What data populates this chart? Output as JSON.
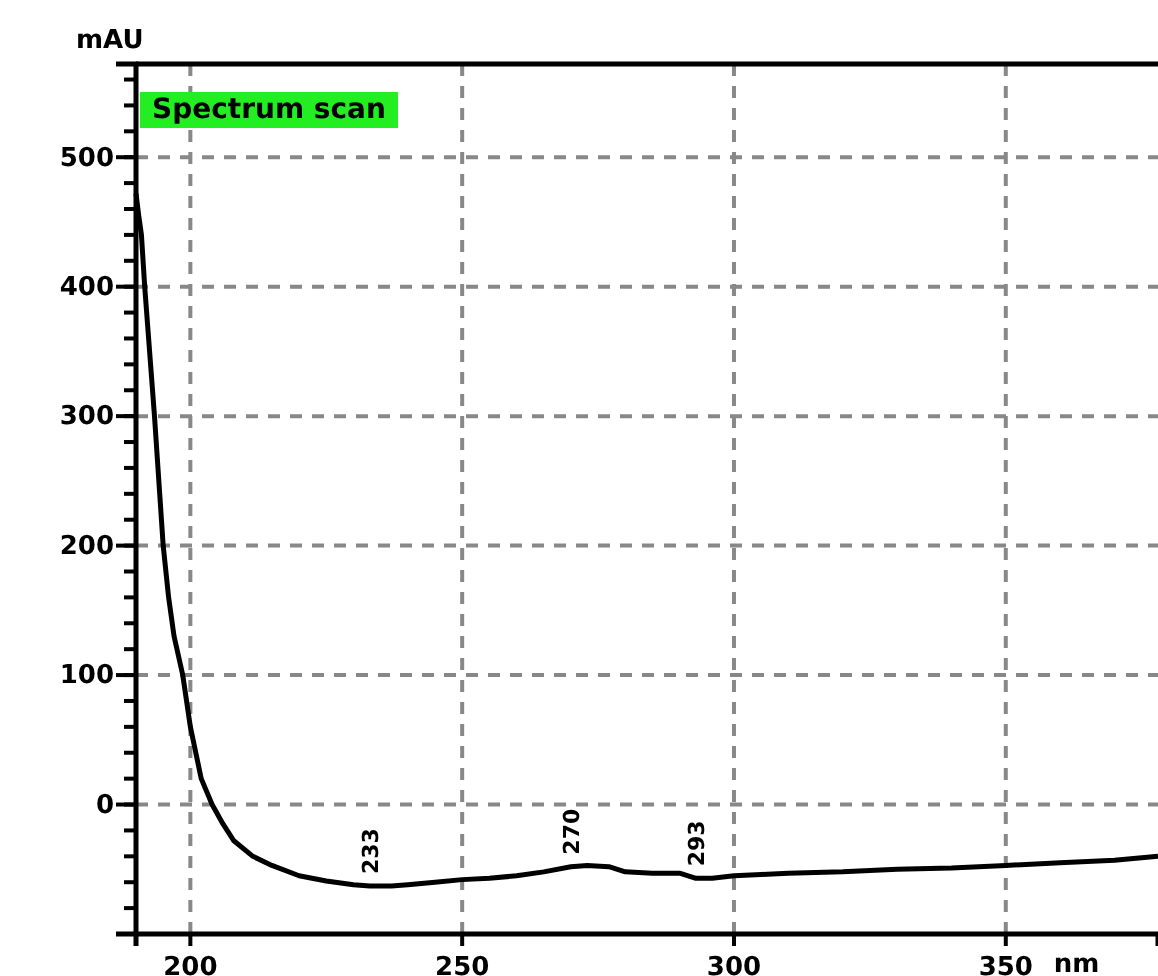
{
  "chart_data": {
    "type": "line",
    "title": "Spectrum scan",
    "ylabel": "mAU",
    "xlabel": "nm",
    "x": [
      190,
      190.5,
      191,
      191.6,
      192.5,
      193.4,
      194.2,
      195,
      196,
      197,
      198.6,
      200,
      202,
      204,
      206,
      208,
      211.5,
      215,
      220,
      225,
      230,
      233,
      237,
      240,
      245,
      250,
      255,
      260,
      265,
      270,
      273,
      277,
      280,
      285,
      290,
      293,
      296,
      300,
      305,
      310,
      320,
      330,
      340,
      350,
      360,
      370,
      378
    ],
    "series": [
      {
        "color": "#000000",
        "values": [
          472,
          455,
          440,
          400,
          350,
          300,
          250,
          200,
          160,
          130,
          100,
          60,
          20,
          0,
          -15,
          -28,
          -40,
          -47,
          -55,
          -59,
          -62,
          -63,
          -63,
          -62,
          -60,
          -58,
          -57,
          -55,
          -52,
          -48,
          -47,
          -48,
          -52,
          -53,
          -53,
          -57,
          -57,
          -55,
          -54,
          -53,
          -52,
          -50,
          -49,
          -47,
          -45,
          -43,
          -40
        ]
      }
    ],
    "annotations": [
      {
        "text": "233",
        "x": 233,
        "y": -63
      },
      {
        "text": "270",
        "x": 270,
        "y": -48
      },
      {
        "text": "293",
        "x": 293,
        "y": -57
      }
    ],
    "xlim": [
      190,
      378
    ],
    "ylim": [
      -100,
      572
    ],
    "xticks": [
      200,
      250,
      300,
      350
    ],
    "yticks": [
      0,
      100,
      200,
      300,
      400,
      500
    ],
    "grid": true,
    "line_style": "solid",
    "marker": "none"
  }
}
